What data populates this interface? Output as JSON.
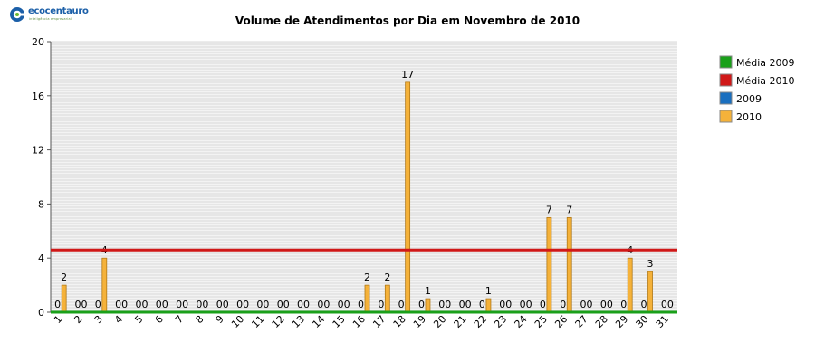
{
  "logo": {
    "name": "ecocentauro",
    "tagline": "inteligência empresarial"
  },
  "colors": {
    "media2009": "#1aa01a",
    "media2010": "#d01818",
    "s2009": "#1a6fbf",
    "s2010": "#f5b23a"
  },
  "chart_data": {
    "type": "bar",
    "title": "Volume de Atendimentos por Dia em Novembro de 2010",
    "xlabel": "",
    "ylabel": "",
    "ylim": [
      0,
      20
    ],
    "yticks": [
      0,
      4,
      8,
      12,
      16,
      20
    ],
    "grid": true,
    "legend_position": "right",
    "categories": [
      "1",
      "2",
      "3",
      "4",
      "5",
      "6",
      "7",
      "8",
      "9",
      "10",
      "11",
      "12",
      "13",
      "14",
      "15",
      "16",
      "17",
      "18",
      "19",
      "20",
      "21",
      "22",
      "23",
      "24",
      "25",
      "26",
      "27",
      "28",
      "29",
      "30",
      "31"
    ],
    "series": [
      {
        "name": "2009",
        "values": [
          0,
          0,
          0,
          0,
          0,
          0,
          0,
          0,
          0,
          0,
          0,
          0,
          0,
          0,
          0,
          0,
          0,
          0,
          0,
          0,
          0,
          0,
          0,
          0,
          0,
          0,
          0,
          0,
          0,
          0,
          0
        ]
      },
      {
        "name": "2010",
        "values": [
          2,
          0,
          4,
          0,
          0,
          0,
          0,
          0,
          0,
          0,
          0,
          0,
          0,
          0,
          0,
          2,
          2,
          17,
          1,
          0,
          0,
          1,
          0,
          0,
          7,
          7,
          0,
          0,
          4,
          3,
          0
        ]
      }
    ],
    "reference_lines": [
      {
        "name": "Média 2009",
        "value": 0
      },
      {
        "name": "Média 2010",
        "value": 4.6
      }
    ],
    "legend": [
      "Média 2009",
      "Média 2010",
      "2009",
      "2010"
    ]
  }
}
